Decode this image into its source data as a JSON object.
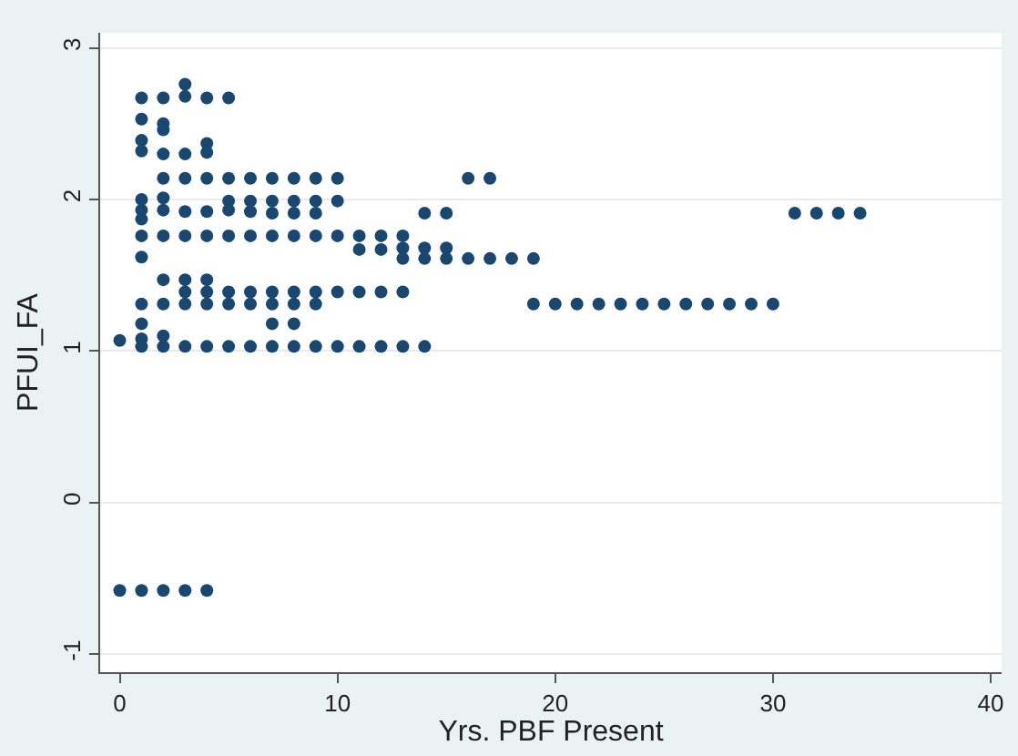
{
  "chart_data": {
    "type": "scatter",
    "xlabel": "Yrs. PBF Present",
    "ylabel": "PFUI_FA",
    "x": [
      0,
      0,
      1,
      1,
      1,
      1,
      1,
      1,
      1,
      1,
      1,
      1,
      1,
      1,
      1,
      1,
      2,
      2,
      2,
      2,
      2,
      2,
      2,
      2,
      2,
      2,
      2,
      2,
      2,
      3,
      3,
      3,
      3,
      3,
      3,
      3,
      3,
      3,
      3,
      3,
      4,
      4,
      4,
      4,
      4,
      4,
      4,
      4,
      4,
      4,
      4,
      5,
      5,
      5,
      5,
      5,
      5,
      5,
      5,
      6,
      6,
      6,
      6,
      6,
      6,
      6,
      7,
      7,
      7,
      7,
      7,
      7,
      7,
      7,
      8,
      8,
      8,
      8,
      8,
      8,
      8,
      8,
      9,
      9,
      9,
      9,
      9,
      9,
      9,
      10,
      10,
      10,
      10,
      10,
      11,
      11,
      11,
      11,
      12,
      12,
      12,
      12,
      13,
      13,
      13,
      13,
      13,
      14,
      14,
      14,
      14,
      15,
      15,
      15,
      16,
      16,
      17,
      17,
      18,
      19,
      19,
      20,
      21,
      22,
      23,
      24,
      25,
      26,
      27,
      28,
      29,
      30,
      31,
      32,
      33,
      34
    ],
    "values": [
      1.07,
      -0.58,
      2.67,
      2.53,
      2.39,
      2.32,
      2.0,
      1.93,
      1.87,
      1.76,
      1.62,
      1.31,
      1.18,
      1.08,
      1.03,
      -0.58,
      2.67,
      2.5,
      2.46,
      2.3,
      2.14,
      2.01,
      1.93,
      1.76,
      1.47,
      1.31,
      1.1,
      1.03,
      -0.58,
      2.76,
      2.68,
      2.3,
      2.14,
      1.92,
      1.76,
      1.47,
      1.39,
      1.31,
      1.03,
      -0.58,
      2.67,
      2.37,
      2.31,
      2.14,
      1.92,
      1.76,
      1.47,
      1.39,
      1.31,
      1.03,
      -0.58,
      2.67,
      2.14,
      1.99,
      1.93,
      1.76,
      1.39,
      1.31,
      1.03,
      2.14,
      1.99,
      1.92,
      1.76,
      1.39,
      1.31,
      1.03,
      2.14,
      1.99,
      1.91,
      1.76,
      1.39,
      1.31,
      1.18,
      1.03,
      2.14,
      1.99,
      1.91,
      1.76,
      1.39,
      1.31,
      1.18,
      1.03,
      2.14,
      1.99,
      1.91,
      1.76,
      1.39,
      1.31,
      1.03,
      2.14,
      1.99,
      1.76,
      1.39,
      1.03,
      1.76,
      1.67,
      1.39,
      1.03,
      1.76,
      1.67,
      1.39,
      1.03,
      1.76,
      1.68,
      1.61,
      1.39,
      1.03,
      1.91,
      1.68,
      1.61,
      1.03,
      1.91,
      1.68,
      1.61,
      2.14,
      1.61,
      2.14,
      1.61,
      1.61,
      1.61,
      1.31,
      1.31,
      1.31,
      1.31,
      1.31,
      1.31,
      1.31,
      1.31,
      1.31,
      1.31,
      1.31,
      1.31,
      1.91,
      1.91,
      1.91,
      1.91
    ],
    "color": "#1a476f",
    "marker": "circle",
    "xlim": [
      -0.9,
      40.5
    ],
    "ylim": [
      -1.12,
      3.1
    ],
    "xticks": [
      0,
      10,
      20,
      30,
      40
    ],
    "yticks": [
      -1,
      0,
      1,
      2,
      3
    ],
    "grid": "y"
  }
}
